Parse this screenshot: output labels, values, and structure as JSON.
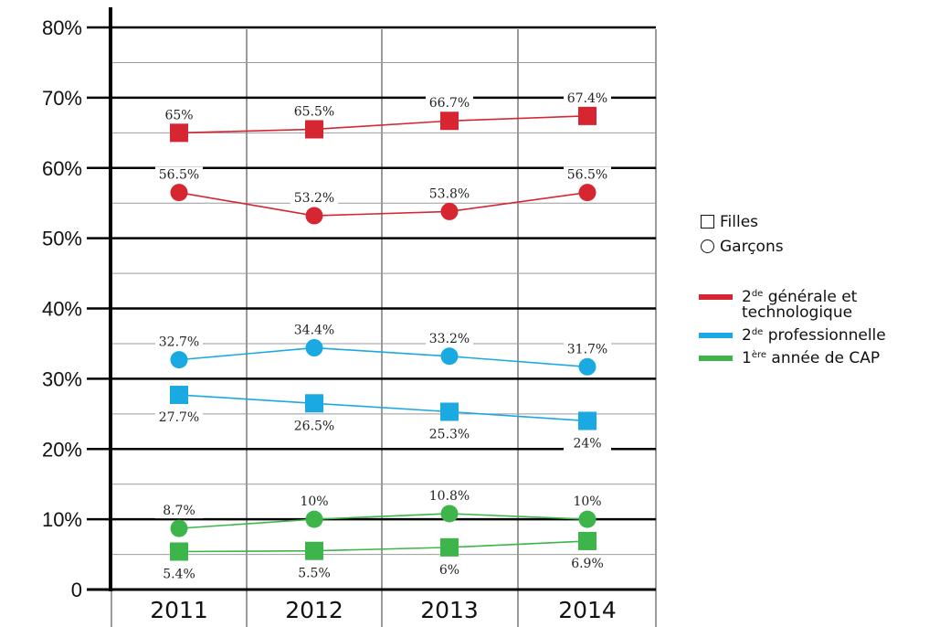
{
  "chart_data": {
    "type": "line",
    "categories": [
      "2011",
      "2012",
      "2013",
      "2014"
    ],
    "ylim": [
      0,
      80
    ],
    "yticks": [
      "0",
      "10%",
      "20%",
      "30%",
      "40%",
      "50%",
      "60%",
      "70%",
      "80%"
    ],
    "grid": true,
    "legend_position": "right",
    "series": [
      {
        "group": "2de générale et technologique",
        "gender": "Filles",
        "marker": "square",
        "color": "#d62631",
        "values": [
          65,
          65.5,
          66.7,
          67.4
        ],
        "labels": [
          "65%",
          "65.5%",
          "66.7%",
          "67.4%"
        ]
      },
      {
        "group": "2de générale et technologique",
        "gender": "Garçons",
        "marker": "circle",
        "color": "#d62631",
        "values": [
          56.5,
          53.2,
          53.8,
          56.5
        ],
        "labels": [
          "56.5%",
          "53.2%",
          "53.8%",
          "56.5%"
        ]
      },
      {
        "group": "2de professionnelle",
        "gender": "Garçons",
        "marker": "circle",
        "color": "#1ba9e1",
        "values": [
          32.7,
          34.4,
          33.2,
          31.7
        ],
        "labels": [
          "32.7%",
          "34.4%",
          "33.2%",
          "31.7%"
        ]
      },
      {
        "group": "2de professionnelle",
        "gender": "Filles",
        "marker": "square",
        "color": "#1ba9e1",
        "values": [
          27.7,
          26.5,
          25.3,
          24
        ],
        "labels": [
          "27.7%",
          "26.5%",
          "25.3%",
          "24%"
        ]
      },
      {
        "group": "1ère année de CAP",
        "gender": "Garçons",
        "marker": "circle",
        "color": "#3db54a",
        "values": [
          8.7,
          10,
          10.8,
          10
        ],
        "labels": [
          "8.7%",
          "10%",
          "10.8%",
          "10%"
        ]
      },
      {
        "group": "1ère année de CAP",
        "gender": "Filles",
        "marker": "square",
        "color": "#3db54a",
        "values": [
          5.4,
          5.5,
          6,
          6.9
        ],
        "labels": [
          "5.4%",
          "5.5%",
          "6%",
          "6.9%"
        ]
      }
    ]
  },
  "legend": {
    "markers": [
      {
        "shape": "square",
        "label": "Filles"
      },
      {
        "shape": "circle",
        "label": "Garçons"
      }
    ],
    "series": [
      {
        "color": "#d62631",
        "prefix": "2",
        "sup": "de",
        "line1": " générale et",
        "line2": "technologique"
      },
      {
        "color": "#1ba9e1",
        "prefix": "2",
        "sup": "de",
        "line1": " professionnelle",
        "line2": ""
      },
      {
        "color": "#3db54a",
        "prefix": "1",
        "sup": "ère",
        "line1": " année de CAP",
        "line2": ""
      }
    ]
  }
}
